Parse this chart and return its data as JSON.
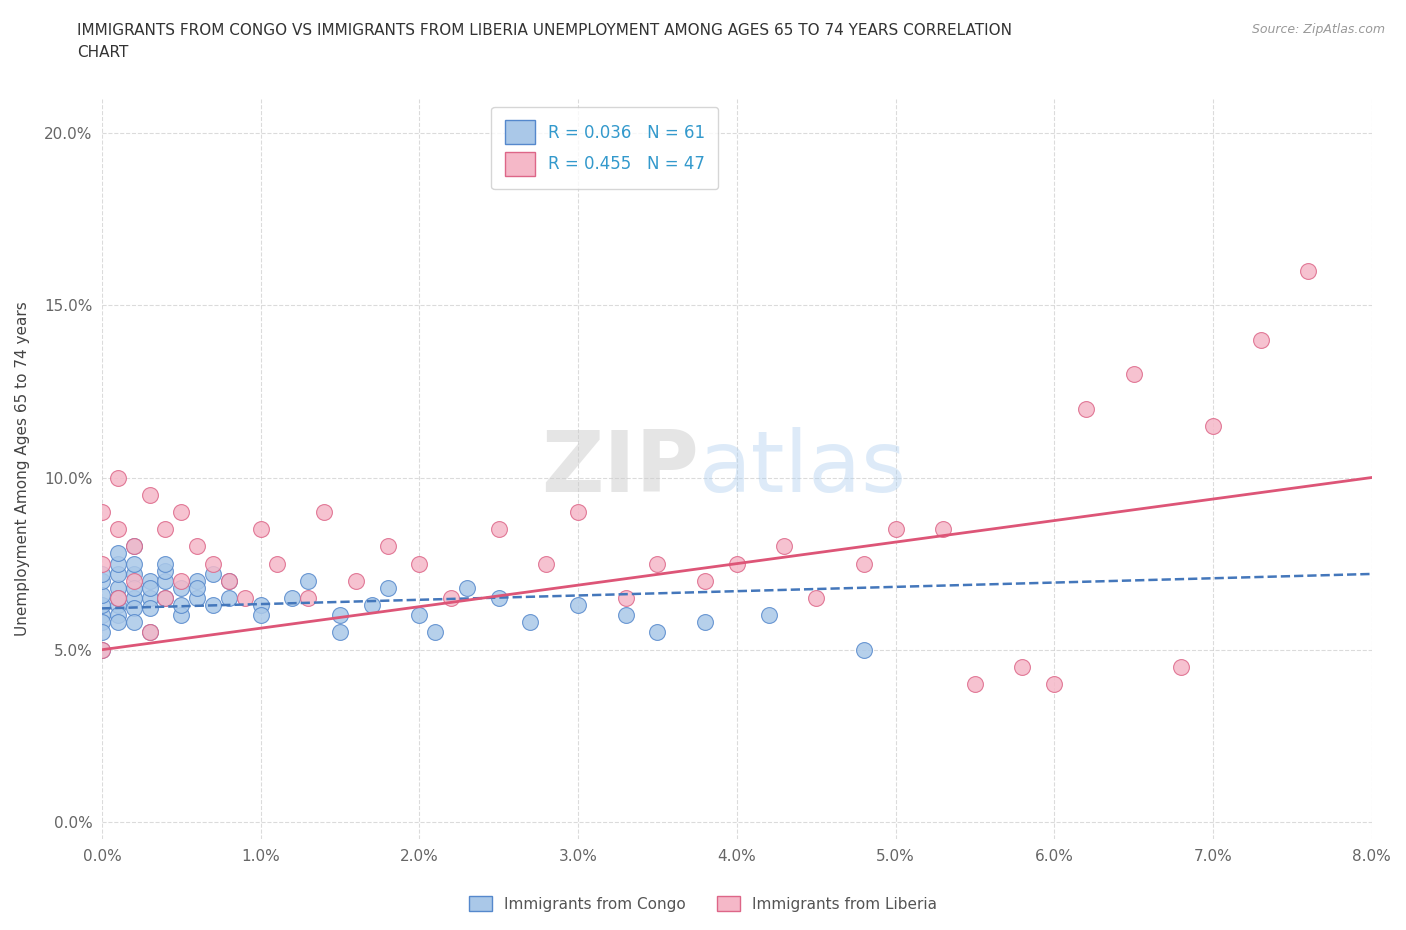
{
  "title": "IMMIGRANTS FROM CONGO VS IMMIGRANTS FROM LIBERIA UNEMPLOYMENT AMONG AGES 65 TO 74 YEARS CORRELATION\nCHART",
  "source": "Source: ZipAtlas.com",
  "ylabel": "Unemployment Among Ages 65 to 74 years",
  "xlim": [
    0.0,
    0.08
  ],
  "ylim": [
    -0.005,
    0.21
  ],
  "xticks": [
    0.0,
    0.01,
    0.02,
    0.03,
    0.04,
    0.05,
    0.06,
    0.07,
    0.08
  ],
  "xticklabels": [
    "0.0%",
    "1.0%",
    "2.0%",
    "3.0%",
    "4.0%",
    "5.0%",
    "6.0%",
    "7.0%",
    "8.0%"
  ],
  "yticks": [
    0.0,
    0.05,
    0.1,
    0.15,
    0.2
  ],
  "yticklabels": [
    "0.0%",
    "5.0%",
    "10.0%",
    "15.0%",
    "20.0%"
  ],
  "congo_color": "#aac8e8",
  "congo_edge": "#5588cc",
  "liberia_color": "#f5b8c8",
  "liberia_edge": "#dd6688",
  "congo_line_color": "#4477bb",
  "liberia_line_color": "#dd5577",
  "R_congo": 0.036,
  "N_congo": 61,
  "R_liberia": 0.455,
  "N_liberia": 47,
  "congo_x": [
    0.0,
    0.0,
    0.0,
    0.0,
    0.0,
    0.0,
    0.0,
    0.0,
    0.001,
    0.001,
    0.001,
    0.001,
    0.001,
    0.001,
    0.001,
    0.001,
    0.002,
    0.002,
    0.002,
    0.002,
    0.002,
    0.002,
    0.002,
    0.003,
    0.003,
    0.003,
    0.003,
    0.003,
    0.004,
    0.004,
    0.004,
    0.004,
    0.005,
    0.005,
    0.005,
    0.006,
    0.006,
    0.006,
    0.007,
    0.007,
    0.008,
    0.008,
    0.01,
    0.01,
    0.012,
    0.013,
    0.015,
    0.015,
    0.017,
    0.018,
    0.02,
    0.021,
    0.023,
    0.025,
    0.027,
    0.03,
    0.033,
    0.035,
    0.038,
    0.042,
    0.048
  ],
  "congo_y": [
    0.06,
    0.063,
    0.066,
    0.058,
    0.07,
    0.072,
    0.055,
    0.05,
    0.063,
    0.068,
    0.072,
    0.075,
    0.06,
    0.058,
    0.078,
    0.065,
    0.065,
    0.072,
    0.068,
    0.075,
    0.062,
    0.08,
    0.058,
    0.065,
    0.07,
    0.068,
    0.062,
    0.055,
    0.065,
    0.07,
    0.073,
    0.075,
    0.06,
    0.068,
    0.063,
    0.065,
    0.07,
    0.068,
    0.063,
    0.072,
    0.07,
    0.065,
    0.063,
    0.06,
    0.065,
    0.07,
    0.06,
    0.055,
    0.063,
    0.068,
    0.06,
    0.055,
    0.068,
    0.065,
    0.058,
    0.063,
    0.06,
    0.055,
    0.058,
    0.06,
    0.05
  ],
  "liberia_x": [
    0.0,
    0.0,
    0.0,
    0.001,
    0.001,
    0.001,
    0.002,
    0.002,
    0.003,
    0.003,
    0.004,
    0.004,
    0.005,
    0.005,
    0.006,
    0.007,
    0.008,
    0.009,
    0.01,
    0.011,
    0.013,
    0.014,
    0.016,
    0.018,
    0.02,
    0.022,
    0.025,
    0.028,
    0.03,
    0.033,
    0.035,
    0.038,
    0.04,
    0.043,
    0.045,
    0.048,
    0.05,
    0.053,
    0.055,
    0.058,
    0.06,
    0.062,
    0.065,
    0.068,
    0.07,
    0.073,
    0.076
  ],
  "liberia_y": [
    0.075,
    0.09,
    0.05,
    0.065,
    0.085,
    0.1,
    0.07,
    0.08,
    0.055,
    0.095,
    0.065,
    0.085,
    0.09,
    0.07,
    0.08,
    0.075,
    0.07,
    0.065,
    0.085,
    0.075,
    0.065,
    0.09,
    0.07,
    0.08,
    0.075,
    0.065,
    0.085,
    0.075,
    0.09,
    0.065,
    0.075,
    0.07,
    0.075,
    0.08,
    0.065,
    0.075,
    0.085,
    0.085,
    0.04,
    0.045,
    0.04,
    0.12,
    0.13,
    0.045,
    0.115,
    0.14,
    0.16
  ],
  "congo_trend_x": [
    0.0,
    0.08
  ],
  "congo_trend_y": [
    0.062,
    0.072
  ],
  "liberia_trend_x": [
    0.0,
    0.08
  ],
  "liberia_trend_y": [
    0.05,
    0.1
  ],
  "watermark_zip": "ZIP",
  "watermark_atlas": "atlas",
  "grid_color": "#cccccc",
  "bg_color": "#ffffff"
}
